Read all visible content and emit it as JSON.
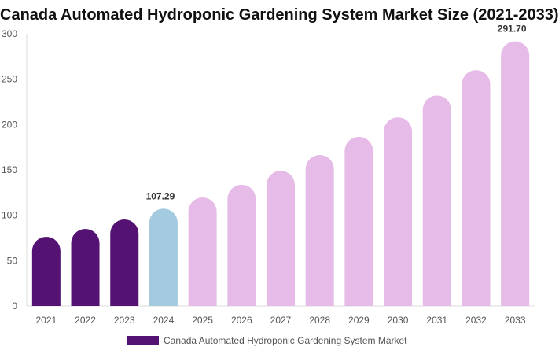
{
  "chart_data": {
    "type": "bar",
    "title": "Canada Automated Hydroponic Gardening System Market Size (2021-2033)",
    "categories": [
      "2021",
      "2022",
      "2023",
      "2024",
      "2025",
      "2026",
      "2027",
      "2028",
      "2029",
      "2030",
      "2031",
      "2032",
      "2033"
    ],
    "series": [
      {
        "name": "Canada Automated Hydroponic Gardening System Market",
        "values": [
          76.3,
          85.0,
          95.4,
          107.29,
          119.7,
          133.6,
          149.0,
          166.5,
          186.5,
          208.0,
          232.0,
          260.0,
          291.7
        ]
      }
    ],
    "data_labels": {
      "3": "107.29",
      "12": "291.70"
    },
    "yticks": [
      0,
      50,
      100,
      150,
      200,
      250,
      300
    ],
    "ylim": [
      0,
      300
    ],
    "grid": false,
    "legend": "bottom",
    "colors": {
      "historical": "#541273",
      "base_year": "#a3cadf",
      "forecast": "#e6bbe8"
    }
  }
}
